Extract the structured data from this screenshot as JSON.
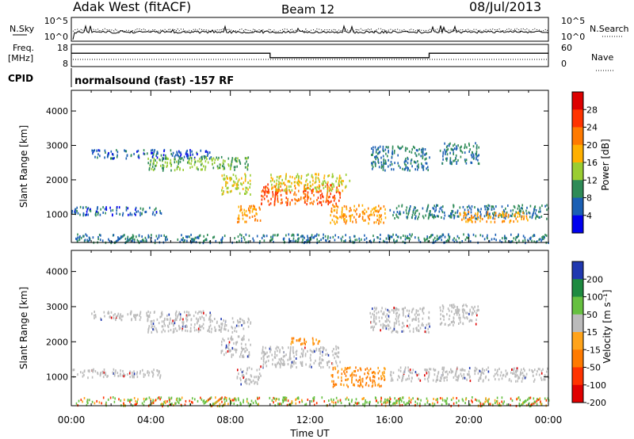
{
  "header": {
    "station": "Adak West (fitACF)",
    "beam": "Beam 12",
    "date": "08/Jul/2013"
  },
  "noise_panel": {
    "left_label": "N.Sky",
    "right_label": "N.Search",
    "left_ticks": [
      "10^5",
      "10^0"
    ],
    "right_ticks": [
      "10^5",
      "10^0"
    ]
  },
  "freq_panel": {
    "label_line1": "Freq.",
    "label_line2": "[MHz]",
    "right_label": "Nave",
    "left_ticks": [
      "18",
      "8"
    ],
    "right_ticks": [
      "60",
      "0"
    ]
  },
  "cpid": {
    "label": "CPID",
    "text": "normalsound (fast) -157 RF"
  },
  "power_colorbar": {
    "label": "Power [dB]",
    "ticks": [
      "28",
      "24",
      "20",
      "16",
      "12",
      "8",
      "4"
    ],
    "colors": [
      "#dd0000",
      "#ff3300",
      "#ff7a00",
      "#ffb000",
      "#9acd32",
      "#2e8b57",
      "#1a5fb4",
      "#0000ee"
    ]
  },
  "velocity_colorbar": {
    "label": "Velocity [m s⁻¹]",
    "ticks": [
      "200",
      "100",
      "50",
      "15",
      "-15",
      "-50",
      "-100",
      "-200"
    ],
    "colors": [
      "#2038b0",
      "#1e8a40",
      "#66c040",
      "#bbbbbb",
      "#ffa31a",
      "#ff7a00",
      "#ff3300",
      "#e00000"
    ]
  },
  "chart_data": [
    {
      "type": "heatmap",
      "title": "",
      "ylabel": "Slant Range [km]",
      "xlabel": "",
      "ylim": [
        180,
        4600
      ],
      "yticks": [
        "1000",
        "2000",
        "3000",
        "4000"
      ],
      "x_ticks": [
        "00:00",
        "04:00",
        "08:00",
        "12:00",
        "16:00",
        "20:00",
        "00:00"
      ],
      "value_label": "Power [dB]",
      "regions": [
        {
          "t": [
            0.2,
            24
          ],
          "range_km": [
            200,
            450
          ],
          "power_db": 8
        },
        {
          "t": [
            0.0,
            4.5
          ],
          "range_km": [
            1000,
            1250
          ],
          "power_db": 6
        },
        {
          "t": [
            1.0,
            7.0
          ],
          "range_km": [
            2650,
            2900
          ],
          "power_db": 6
        },
        {
          "t": [
            3.8,
            9.0
          ],
          "range_km": [
            2300,
            2700
          ],
          "power_db": 12
        },
        {
          "t": [
            7.5,
            9.0
          ],
          "range_km": [
            1600,
            2200
          ],
          "power_db": 16
        },
        {
          "t": [
            8.3,
            9.5
          ],
          "range_km": [
            800,
            1300
          ],
          "power_db": 20
        },
        {
          "t": [
            9.5,
            13.5
          ],
          "range_km": [
            1300,
            1900
          ],
          "power_db": 24
        },
        {
          "t": [
            10.0,
            14.0
          ],
          "range_km": [
            1700,
            2200
          ],
          "power_db": 16
        },
        {
          "t": [
            13.0,
            15.8
          ],
          "range_km": [
            750,
            1300
          ],
          "power_db": 20
        },
        {
          "t": [
            15.0,
            18.0
          ],
          "range_km": [
            2300,
            3000
          ],
          "power_db": 8
        },
        {
          "t": [
            16.0,
            24.0
          ],
          "range_km": [
            900,
            1300
          ],
          "power_db": 8
        },
        {
          "t": [
            19.5,
            23.0
          ],
          "range_km": [
            800,
            1100
          ],
          "power_db": 20
        },
        {
          "t": [
            18.5,
            20.5
          ],
          "range_km": [
            2500,
            3100
          ],
          "power_db": 8
        }
      ]
    },
    {
      "type": "heatmap",
      "title": "",
      "ylabel": "Slant Range [km]",
      "xlabel": "Time UT",
      "ylim": [
        180,
        4600
      ],
      "yticks": [
        "1000",
        "2000",
        "3000",
        "4000"
      ],
      "x_ticks": [
        "00:00",
        "04:00",
        "08:00",
        "12:00",
        "16:00",
        "20:00",
        "00:00"
      ],
      "value_label": "Velocity [m s⁻¹]",
      "regions": [
        {
          "t": [
            0.2,
            24
          ],
          "range_km": [
            200,
            450
          ],
          "velocity_ms": 15
        },
        {
          "t": [
            0.0,
            4.5
          ],
          "range_km": [
            1000,
            1250
          ],
          "velocity_ms": 0
        },
        {
          "t": [
            1.0,
            7.0
          ],
          "range_km": [
            2650,
            2900
          ],
          "velocity_ms": 0
        },
        {
          "t": [
            3.8,
            9.0
          ],
          "range_km": [
            2300,
            2700
          ],
          "velocity_ms": 0
        },
        {
          "t": [
            7.5,
            9.0
          ],
          "range_km": [
            1600,
            2200
          ],
          "velocity_ms": 0
        },
        {
          "t": [
            8.3,
            9.5
          ],
          "range_km": [
            800,
            1300
          ],
          "velocity_ms": 0
        },
        {
          "t": [
            9.5,
            13.5
          ],
          "range_km": [
            1300,
            1900
          ],
          "velocity_ms": 0
        },
        {
          "t": [
            11.0,
            12.5
          ],
          "range_km": [
            1950,
            2150
          ],
          "velocity_ms": -50
        },
        {
          "t": [
            13.0,
            15.8
          ],
          "range_km": [
            750,
            1300
          ],
          "velocity_ms": -50
        },
        {
          "t": [
            15.0,
            18.0
          ],
          "range_km": [
            2300,
            3000
          ],
          "velocity_ms": 0
        },
        {
          "t": [
            16.0,
            24.0
          ],
          "range_km": [
            900,
            1300
          ],
          "velocity_ms": 0
        },
        {
          "t": [
            18.5,
            20.5
          ],
          "range_km": [
            2500,
            3100
          ],
          "velocity_ms": 0
        }
      ]
    },
    {
      "type": "line",
      "title": "",
      "xlabel": "",
      "ylabel": "Freq. [MHz]",
      "ylim": [
        8,
        18
      ],
      "series": [
        {
          "x": [
            0,
            10,
            10,
            18,
            18,
            24
          ],
          "values": [
            14,
            14,
            12,
            12,
            14,
            14
          ]
        }
      ]
    }
  ]
}
